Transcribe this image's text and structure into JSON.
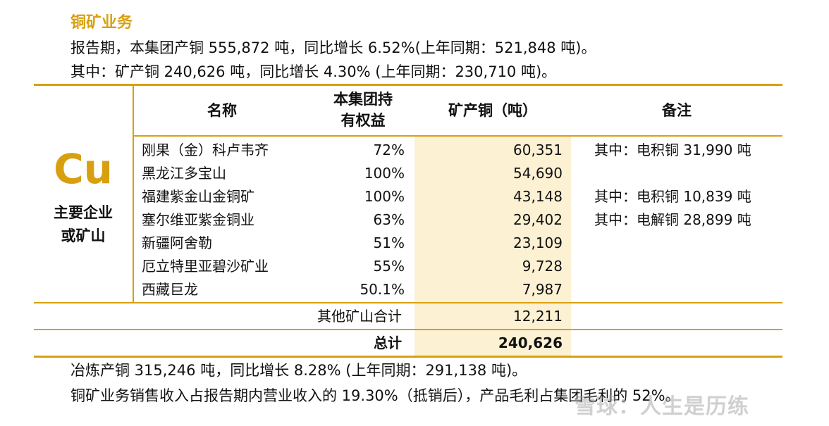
{
  "section_title": "铜矿业务",
  "intro": {
    "line1": "报告期，本集团产铜 555,872 吨，同比增长 6.52%(上年同期：521,848 吨)。",
    "line2": "其中：矿产铜 240,626 吨，同比增长 4.30% (上年同期：230,710 吨)。"
  },
  "table": {
    "left_symbol": "Cu",
    "left_label_1": "主要企业",
    "left_label_2": "或矿山",
    "headers": {
      "name": "名称",
      "equity_1": "本集团持",
      "equity_2": "有权益",
      "mined_copper": "矿产铜（吨）",
      "remarks": "备注"
    },
    "rows": [
      {
        "name": "刚果（金）科卢韦齐",
        "equity": "72%",
        "mined_copper": "60,351",
        "remark": "其中：电积铜 31,990 吨"
      },
      {
        "name": "黑龙江多宝山",
        "equity": "100%",
        "mined_copper": "54,690",
        "remark": ""
      },
      {
        "name": "福建紫金山金铜矿",
        "equity": "100%",
        "mined_copper": "43,148",
        "remark": "其中：电积铜 10,839 吨"
      },
      {
        "name": "塞尔维亚紫金铜业",
        "equity": "63%",
        "mined_copper": "29,402",
        "remark": "其中：电解铜 28,899 吨"
      },
      {
        "name": "新疆阿舍勒",
        "equity": "51%",
        "mined_copper": "23,109",
        "remark": ""
      },
      {
        "name": "厄立特里亚碧沙矿业",
        "equity": "55%",
        "mined_copper": "9,728",
        "remark": ""
      },
      {
        "name": "西藏巨龙",
        "equity": "50.1%",
        "mined_copper": "7,987",
        "remark": ""
      }
    ],
    "others": {
      "label": "其他矿山合计",
      "value": "12,211"
    },
    "total": {
      "label": "总计",
      "value": "240,626"
    }
  },
  "outro": {
    "line3": "冶炼产铜 315,246 吨，同比增长 8.28% (上年同期：291,138 吨)。",
    "line4": "铜矿业务销售收入占报告期内营业收入的 19.30%（抵销后），产品毛利占集团毛利的 52%。"
  },
  "watermark": "雪球：人生是历练",
  "colors": {
    "accent": "#d8a011",
    "highlight": "#fdf1d4"
  }
}
